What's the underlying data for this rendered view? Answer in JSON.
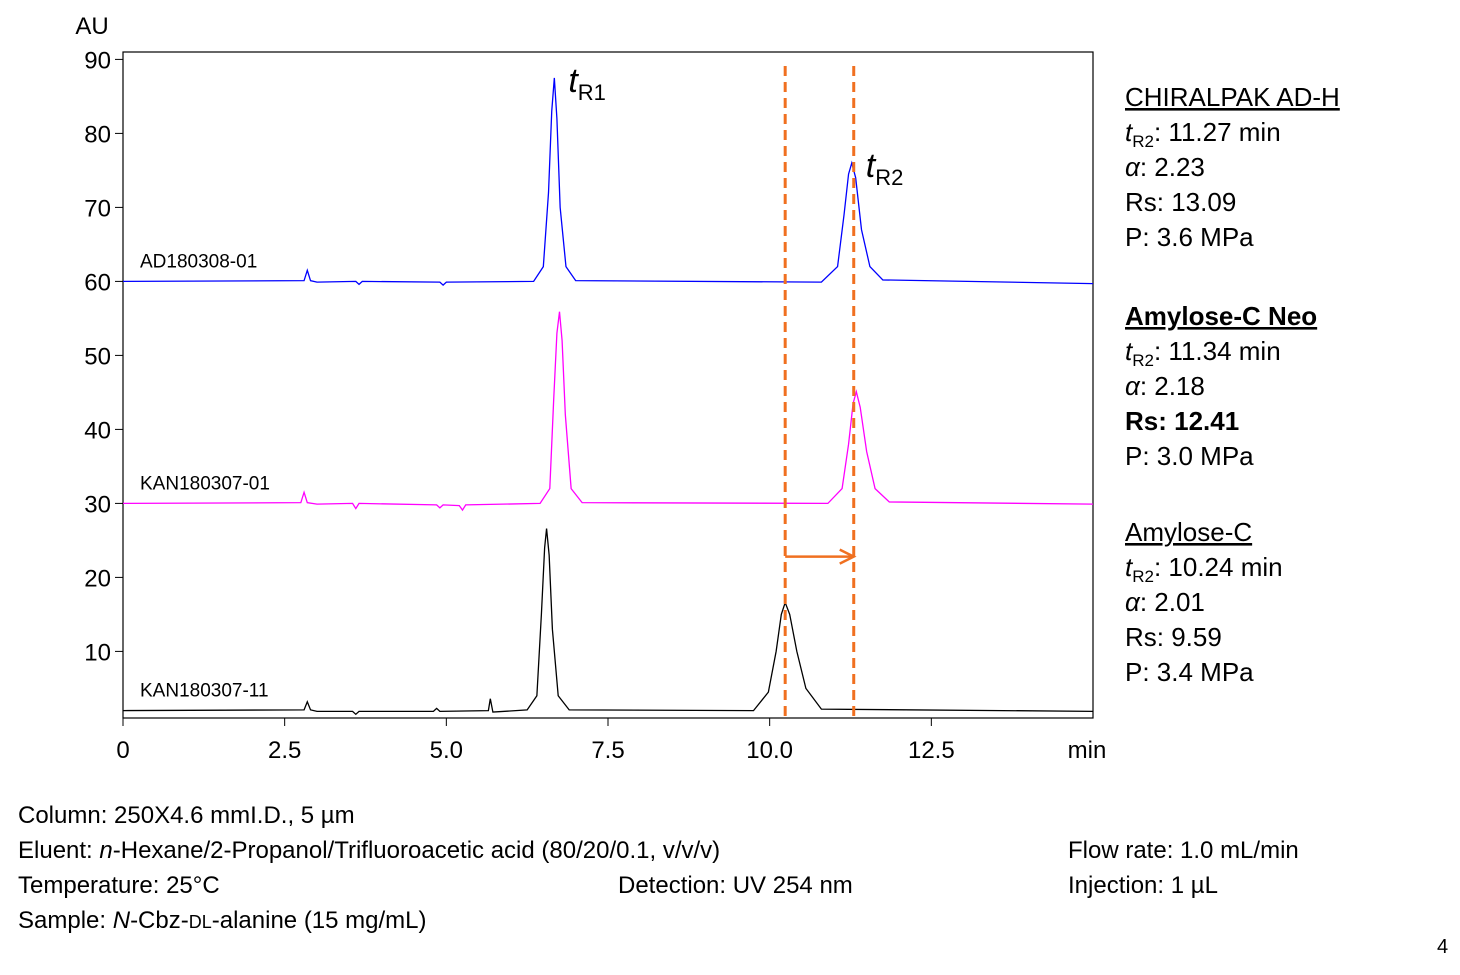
{
  "chart_data": {
    "type": "line",
    "y_label": "AU",
    "x_label": "min",
    "xlim": [
      0,
      15
    ],
    "xticks": [
      0,
      2.5,
      {
        "value": 5,
        "label": "5.0"
      },
      7.5,
      {
        "value": 10,
        "label": "10.0"
      },
      12.5
    ],
    "ylim": [
      1,
      91
    ],
    "yticks": [
      10,
      20,
      30,
      40,
      50,
      60,
      70,
      80,
      90
    ],
    "series": [
      {
        "name": "AD180308-01",
        "color": "#0000ff",
        "x": [
          0,
          2.8,
          2.85,
          2.9,
          3.0,
          3.6,
          3.65,
          3.7,
          4.9,
          4.95,
          5.0,
          6.35,
          6.5,
          6.58,
          6.63,
          6.67,
          6.71,
          6.76,
          6.85,
          7.0,
          10.8,
          11.05,
          11.15,
          11.22,
          11.27,
          11.33,
          11.42,
          11.55,
          11.75,
          15
        ],
        "values": [
          60,
          60.1,
          61.5,
          60.1,
          59.9,
          60,
          59.6,
          60,
          59.9,
          59.5,
          59.9,
          60,
          62,
          72,
          83,
          87.5,
          82,
          70,
          62,
          60.1,
          59.9,
          62,
          69,
          74.5,
          76,
          74,
          67,
          62,
          60.2,
          59.7
        ]
      },
      {
        "name": "KAN180307-01",
        "color": "#ff00ff",
        "x": [
          0,
          2.75,
          2.8,
          2.85,
          3.0,
          3.55,
          3.6,
          3.65,
          4.85,
          4.9,
          4.95,
          5.2,
          5.25,
          5.3,
          6.45,
          6.6,
          6.66,
          6.71,
          6.75,
          6.79,
          6.84,
          6.93,
          7.1,
          10.9,
          11.12,
          11.22,
          11.29,
          11.34,
          11.4,
          11.5,
          11.63,
          11.85,
          15
        ],
        "values": [
          30,
          30.1,
          31.5,
          30.1,
          29.9,
          30,
          29.3,
          30,
          29.8,
          29.4,
          29.8,
          29.7,
          29.1,
          29.8,
          30,
          32,
          44,
          53,
          55.9,
          52,
          42,
          32,
          30.1,
          30,
          32,
          38,
          43.5,
          45.1,
          43,
          37,
          32,
          30.2,
          29.9
        ]
      },
      {
        "name": "KAN180307-11",
        "color": "#000000",
        "x": [
          0,
          2.8,
          2.85,
          2.9,
          3.0,
          3.55,
          3.6,
          3.65,
          4.8,
          4.85,
          4.9,
          5.65,
          5.68,
          5.72,
          6.25,
          6.4,
          6.47,
          6.52,
          6.55,
          6.59,
          6.64,
          6.73,
          6.9,
          9.75,
          9.98,
          10.1,
          10.18,
          10.24,
          10.31,
          10.42,
          10.56,
          10.8,
          15
        ],
        "values": [
          2,
          2.1,
          3.2,
          2.1,
          1.9,
          1.9,
          1.5,
          1.9,
          1.9,
          2.3,
          1.9,
          2,
          3.6,
          1.8,
          2.1,
          4,
          15,
          24,
          26.6,
          23,
          13,
          4,
          2.1,
          2,
          4.5,
          10,
          15,
          16.6,
          15,
          10,
          5,
          2.2,
          1.9
        ]
      }
    ],
    "reference_lines": {
      "x": [
        10.24,
        11.3
      ],
      "color": "#f07020"
    },
    "arrow": {
      "from": 10.24,
      "to": 11.3,
      "y": 22.8,
      "color": "#f07020"
    },
    "peak_labels": [
      {
        "t": "t",
        "sub": "R1",
        "x": 6.67,
        "y": 87.5
      },
      {
        "t": "t",
        "sub": "R2",
        "x": 11.27,
        "y": 76
      }
    ]
  },
  "columns": [
    {
      "name": "CHIRALPAK AD-H",
      "color": "#000000",
      "bold": false,
      "t": "t",
      "t_sub": "R2",
      "t_text": ": 11.27 min",
      "alpha": "α",
      "alpha_text": ": 2.23",
      "rs": "Rs: 13.09",
      "p": "P: 3.6 MPa"
    },
    {
      "name": "Amylose-C Neo",
      "color": "#ff0000",
      "bold": true,
      "t": "t",
      "t_sub": "R2",
      "t_text": ": 11.34 min",
      "alpha": "α",
      "alpha_text": ": 2.18",
      "rs": "Rs: 12.41",
      "p": "P: 3.0 MPa"
    },
    {
      "name": "Amylose-C",
      "color": "#000000",
      "bold": false,
      "t": "t",
      "t_sub": "R2",
      "t_text": ": 10.24 min",
      "alpha": "α",
      "alpha_text": ": 2.01",
      "rs": "Rs: 9.59",
      "p": "P: 3.4 MPa"
    }
  ],
  "conditions": {
    "column": "Column: 250X4.6 mmI.D., 5 µm",
    "eluent": {
      "label": "Eluent: ",
      "italic": "n",
      "text": "-Hexane/2-Propanol/Trifluoroacetic acid (80/20/0.1, v/v/v)"
    },
    "temperature": "Temperature: 25°C",
    "detection": "Detection: UV 254 nm",
    "flow_rate": "Flow rate: 1.0 mL/min",
    "injection": "Injection: 1 µL",
    "sample": {
      "label": "Sample: ",
      "italic": "N",
      "text": "-Cbz-",
      "small_caps": "DL",
      "rest": "-alanine (15 mg/mL)"
    }
  },
  "page_number": "4"
}
